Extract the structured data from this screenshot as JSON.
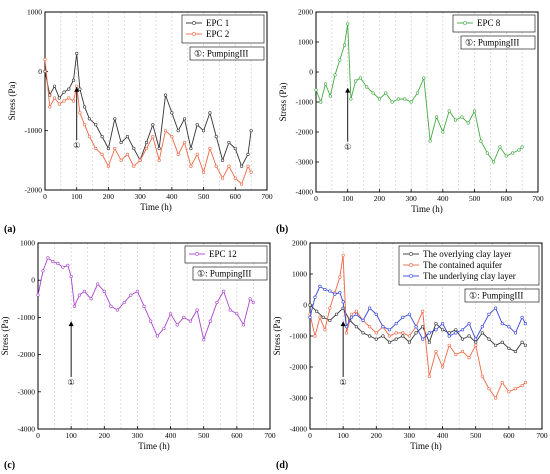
{
  "chart_data": [
    {
      "type": "line",
      "panel_label": "(a)",
      "xlabel": "Time (h)",
      "ylabel": "Stress (Pa)",
      "xlim": [
        0,
        700
      ],
      "ylim": [
        -2000,
        1000
      ],
      "xticks": [
        0,
        100,
        200,
        300,
        400,
        500,
        600,
        700
      ],
      "yticks": [
        -2000,
        -1000,
        0,
        1000
      ],
      "grid": true,
      "legend_position": "top-right",
      "annotation": {
        "marker": "①",
        "text": "PumpingIII",
        "x": 100
      },
      "series": [
        {
          "name": "EPC 1",
          "color": "#333333",
          "x": [
            0,
            15,
            30,
            45,
            60,
            75,
            90,
            100,
            110,
            125,
            140,
            160,
            180,
            200,
            220,
            240,
            260,
            280,
            300,
            320,
            340,
            360,
            380,
            400,
            420,
            440,
            460,
            480,
            500,
            520,
            540,
            560,
            580,
            600,
            620,
            640,
            650
          ],
          "y": [
            0,
            -400,
            -250,
            -450,
            -350,
            -300,
            -150,
            300,
            -300,
            -600,
            -800,
            -900,
            -1100,
            -1300,
            -800,
            -1200,
            -1100,
            -1300,
            -1500,
            -1200,
            -900,
            -1300,
            -400,
            -700,
            -1000,
            -800,
            -1300,
            -900,
            -1000,
            -700,
            -1100,
            -1500,
            -1200,
            -1300,
            -1600,
            -1400,
            -1000
          ]
        },
        {
          "name": "EPC 2",
          "color": "#ee6644",
          "x": [
            0,
            15,
            30,
            45,
            60,
            75,
            90,
            100,
            110,
            125,
            140,
            160,
            180,
            200,
            220,
            240,
            260,
            280,
            300,
            320,
            340,
            360,
            380,
            400,
            420,
            440,
            460,
            480,
            500,
            520,
            540,
            560,
            580,
            600,
            620,
            640,
            650
          ],
          "y": [
            200,
            -600,
            -450,
            -550,
            -500,
            -450,
            -500,
            -250,
            -700,
            -900,
            -1100,
            -1300,
            -1400,
            -1600,
            -1300,
            -1500,
            -1400,
            -1600,
            -1500,
            -1300,
            -1100,
            -1500,
            -1000,
            -1100,
            -1400,
            -1200,
            -1600,
            -1400,
            -1700,
            -1300,
            -1600,
            -1800,
            -1600,
            -1800,
            -1900,
            -1600,
            -1700
          ]
        }
      ]
    },
    {
      "type": "line",
      "panel_label": "(b)",
      "xlabel": "Time (h)",
      "ylabel": "Stress (Pa)",
      "xlim": [
        0,
        700
      ],
      "ylim": [
        -4000,
        2000
      ],
      "xticks": [
        0,
        100,
        200,
        300,
        400,
        500,
        600,
        700
      ],
      "yticks": [
        -4000,
        -3000,
        -2000,
        -1000,
        0,
        1000,
        2000
      ],
      "grid": true,
      "legend_position": "top-right",
      "annotation": {
        "marker": "①",
        "text": "PumpingIII",
        "x": 100
      },
      "series": [
        {
          "name": "EPC 8",
          "color": "#44aa44",
          "x": [
            0,
            15,
            30,
            45,
            60,
            75,
            90,
            100,
            110,
            125,
            140,
            160,
            180,
            200,
            220,
            240,
            260,
            280,
            300,
            320,
            340,
            360,
            380,
            400,
            420,
            440,
            460,
            480,
            500,
            520,
            540,
            560,
            580,
            600,
            620,
            640,
            650
          ],
          "y": [
            -600,
            -1000,
            -400,
            -800,
            -100,
            400,
            900,
            1600,
            -900,
            -300,
            -200,
            -500,
            -700,
            -900,
            -700,
            -1000,
            -900,
            -900,
            -1000,
            -700,
            -200,
            -2300,
            -1500,
            -2000,
            -1300,
            -1600,
            -1500,
            -1700,
            -1300,
            -2300,
            -2700,
            -3000,
            -2500,
            -2800,
            -2700,
            -2600,
            -2500
          ]
        }
      ]
    },
    {
      "type": "line",
      "panel_label": "(c)",
      "xlabel": "Time (h)",
      "ylabel": "Stress (Pa)",
      "xlim": [
        0,
        700
      ],
      "ylim": [
        -4000,
        1000
      ],
      "xticks": [
        0,
        100,
        200,
        300,
        400,
        500,
        600,
        700
      ],
      "yticks": [
        -4000,
        -3000,
        -2000,
        -1000,
        0,
        1000
      ],
      "grid": true,
      "legend_position": "top-right",
      "annotation": {
        "marker": "①",
        "text": "PumpingIII",
        "x": 100
      },
      "series": [
        {
          "name": "EPC 12",
          "color": "#aa44cc",
          "x": [
            0,
            15,
            30,
            45,
            60,
            75,
            90,
            100,
            110,
            125,
            140,
            160,
            180,
            200,
            220,
            240,
            260,
            280,
            300,
            320,
            340,
            360,
            380,
            400,
            420,
            440,
            460,
            480,
            500,
            520,
            540,
            560,
            580,
            600,
            620,
            640,
            650
          ],
          "y": [
            -400,
            250,
            600,
            500,
            450,
            350,
            400,
            100,
            -700,
            -400,
            -300,
            -500,
            -100,
            -300,
            -700,
            -800,
            -600,
            -400,
            -300,
            -700,
            -1100,
            -1500,
            -1300,
            -900,
            -1200,
            -1000,
            -1100,
            -800,
            -1600,
            -1100,
            -600,
            -300,
            -800,
            -900,
            -1200,
            -500,
            -600
          ]
        }
      ]
    },
    {
      "type": "line",
      "panel_label": "(d)",
      "xlabel": "Time (h)",
      "ylabel": "Stress (Pa)",
      "xlim": [
        0,
        700
      ],
      "ylim": [
        -4000,
        2000
      ],
      "xticks": [
        0,
        100,
        200,
        300,
        400,
        500,
        600,
        700
      ],
      "yticks": [
        -4000,
        -3000,
        -2000,
        -1000,
        0,
        1000,
        2000
      ],
      "grid": true,
      "legend_position": "top-right",
      "annotation": {
        "marker": "①",
        "text": "PumpingIII",
        "x": 100
      },
      "series": [
        {
          "name": "The overlying clay layer",
          "color": "#333333",
          "x": [
            0,
            20,
            40,
            60,
            80,
            100,
            120,
            140,
            160,
            180,
            200,
            220,
            240,
            260,
            280,
            300,
            320,
            340,
            360,
            380,
            400,
            420,
            440,
            460,
            480,
            500,
            520,
            540,
            560,
            580,
            600,
            620,
            640,
            650
          ],
          "y": [
            0,
            -200,
            -400,
            -500,
            -300,
            -100,
            -500,
            -700,
            -900,
            -1000,
            -1100,
            -1000,
            -1200,
            -1100,
            -1000,
            -1200,
            -900,
            -700,
            -1200,
            -600,
            -800,
            -900,
            -800,
            -1100,
            -1000,
            -1200,
            -900,
            -1100,
            -1300,
            -1200,
            -1400,
            -1500,
            -1200,
            -1300
          ]
        },
        {
          "name": "The contained aquifer",
          "color": "#ee6644",
          "x": [
            0,
            15,
            30,
            45,
            60,
            75,
            90,
            100,
            110,
            125,
            140,
            160,
            180,
            200,
            220,
            240,
            260,
            280,
            300,
            320,
            340,
            360,
            380,
            400,
            420,
            440,
            460,
            480,
            500,
            520,
            540,
            560,
            580,
            600,
            620,
            640,
            650
          ],
          "y": [
            -300,
            -1000,
            -400,
            -800,
            -100,
            400,
            900,
            1600,
            -900,
            -300,
            -200,
            -500,
            -700,
            -900,
            -700,
            -1000,
            -900,
            -900,
            -1000,
            -700,
            -200,
            -2300,
            -1500,
            -2000,
            -1300,
            -1600,
            -1500,
            -1700,
            -1300,
            -2300,
            -2700,
            -3000,
            -2500,
            -2800,
            -2700,
            -2600,
            -2500
          ]
        },
        {
          "name": "The underlying clay layer",
          "color": "#3344dd",
          "x": [
            0,
            15,
            30,
            45,
            60,
            75,
            90,
            100,
            110,
            125,
            140,
            160,
            180,
            200,
            220,
            240,
            260,
            280,
            300,
            320,
            340,
            360,
            380,
            400,
            420,
            440,
            460,
            480,
            500,
            520,
            540,
            560,
            580,
            600,
            620,
            640,
            650
          ],
          "y": [
            -400,
            250,
            600,
            500,
            450,
            350,
            400,
            100,
            -700,
            -400,
            -300,
            -500,
            -100,
            -300,
            -700,
            -800,
            -600,
            -400,
            -300,
            -700,
            -1100,
            -900,
            -800,
            -600,
            -1000,
            -900,
            -800,
            -600,
            -1100,
            -700,
            -300,
            -100,
            -600,
            -700,
            -900,
            -400,
            -600
          ]
        }
      ]
    }
  ]
}
